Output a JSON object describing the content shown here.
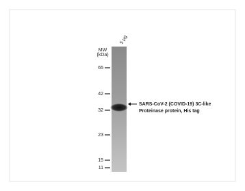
{
  "lane_label": "5 µg",
  "mw_label": [
    "MW",
    "(kDa)"
  ],
  "markers": [
    "65",
    "42",
    "32",
    "23",
    "15",
    "11"
  ],
  "annotation": [
    "SARS-CoV-2 (COVID-19) 3C-like",
    "Proteinase protein, His tag"
  ]
}
